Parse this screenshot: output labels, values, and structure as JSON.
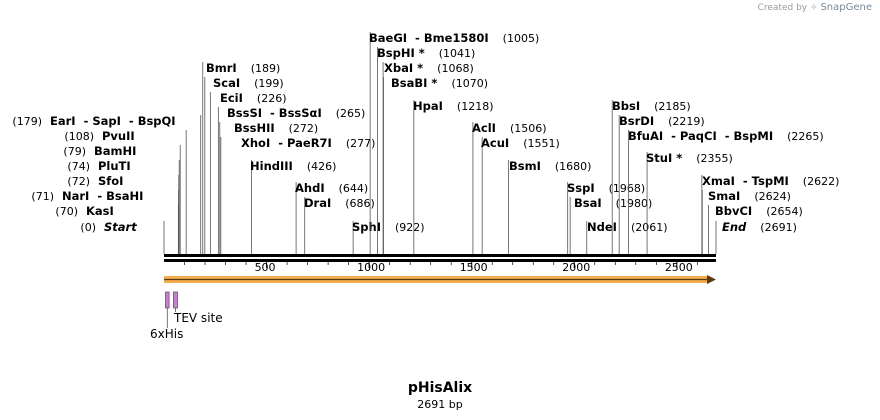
{
  "credit": {
    "prefix": "Created by",
    "brand": "SnapGene"
  },
  "plasmid": {
    "name": "pHisAlix",
    "size_label": "2691 bp",
    "length": 2691
  },
  "ruler_ticks": [
    {
      "pos": 500,
      "label": "500"
    },
    {
      "pos": 1000,
      "label": "1000"
    },
    {
      "pos": 1500,
      "label": "1500"
    },
    {
      "pos": 2000,
      "label": "2000"
    },
    {
      "pos": 2500,
      "label": "2500"
    }
  ],
  "features": [
    {
      "name": "6xHis",
      "start": 7,
      "end": 25,
      "color": "#c77fcf"
    },
    {
      "name": "TEV site",
      "start": 46,
      "end": 66,
      "color": "#c77fcf"
    }
  ],
  "orf": {
    "start": 1,
    "end": 2691,
    "color": "#f3a43b"
  },
  "sites": [
    {
      "id": "start",
      "name": "Start",
      "pos": 0,
      "pos_label": "(0)",
      "italic": true,
      "side": "left"
    },
    {
      "id": "kasi",
      "name": "KasI",
      "pos": 70,
      "pos_label": "(70)",
      "side": "left"
    },
    {
      "id": "nari",
      "name": "NarI  - BsaHI",
      "pos": 71,
      "pos_label": "(71)",
      "side": "left"
    },
    {
      "id": "sfoi",
      "name": "SfoI",
      "pos": 72,
      "pos_label": "(72)",
      "side": "left"
    },
    {
      "id": "pluti",
      "name": "PluTI",
      "pos": 74,
      "pos_label": "(74)",
      "side": "left"
    },
    {
      "id": "bamhi",
      "name": "BamHI",
      "pos": 79,
      "pos_label": "(79)",
      "side": "left"
    },
    {
      "id": "pvuii",
      "name": "PvuII",
      "pos": 108,
      "pos_label": "(108)",
      "side": "left"
    },
    {
      "id": "eari",
      "name": "EarI  - SapI  - BspQI",
      "pos": 179,
      "pos_label": "(179)",
      "side": "left"
    },
    {
      "id": "bmri",
      "name": "BmrI",
      "pos": 189,
      "pos_label": "(189)",
      "side": "right"
    },
    {
      "id": "scai",
      "name": "ScaI",
      "pos": 199,
      "pos_label": "(199)",
      "side": "right"
    },
    {
      "id": "ecii",
      "name": "EciI",
      "pos": 226,
      "pos_label": "(226)",
      "side": "right"
    },
    {
      "id": "bsssi",
      "name": "BssSI  - BssSαI",
      "pos": 265,
      "pos_label": "(265)",
      "side": "right"
    },
    {
      "id": "bsshii",
      "name": "BssHII",
      "pos": 272,
      "pos_label": "(272)",
      "side": "right"
    },
    {
      "id": "xhoi",
      "name": "XhoI  - PaeR7I",
      "pos": 277,
      "pos_label": "(277)",
      "side": "right"
    },
    {
      "id": "hindiii",
      "name": "HindIII",
      "pos": 426,
      "pos_label": "(426)",
      "side": "right"
    },
    {
      "id": "ahdi",
      "name": "AhdI",
      "pos": 644,
      "pos_label": "(644)",
      "side": "right"
    },
    {
      "id": "drai",
      "name": "DraI",
      "pos": 686,
      "pos_label": "(686)",
      "side": "right"
    },
    {
      "id": "sphi",
      "name": "SphI",
      "pos": 922,
      "pos_label": "(922)",
      "side": "right"
    },
    {
      "id": "baegi",
      "name": "BaeGI  - Bme1580I",
      "pos": 1005,
      "pos_label": "(1005)",
      "side": "right"
    },
    {
      "id": "bsphi",
      "name": "BspHI *",
      "pos": 1041,
      "pos_label": "(1041)",
      "side": "right"
    },
    {
      "id": "xbai",
      "name": "XbaI *",
      "pos": 1068,
      "pos_label": "(1068)",
      "side": "right"
    },
    {
      "id": "bsabi",
      "name": "BsaBI *",
      "pos": 1070,
      "pos_label": "(1070)",
      "side": "right"
    },
    {
      "id": "hpai",
      "name": "HpaI",
      "pos": 1218,
      "pos_label": "(1218)",
      "side": "right"
    },
    {
      "id": "acli",
      "name": "AclI",
      "pos": 1506,
      "pos_label": "(1506)",
      "side": "right"
    },
    {
      "id": "acui",
      "name": "AcuI",
      "pos": 1551,
      "pos_label": "(1551)",
      "side": "right"
    },
    {
      "id": "bsmi",
      "name": "BsmI",
      "pos": 1680,
      "pos_label": "(1680)",
      "side": "right"
    },
    {
      "id": "sspi",
      "name": "SspI",
      "pos": 1968,
      "pos_label": "(1968)",
      "side": "right"
    },
    {
      "id": "bsai",
      "name": "BsaI",
      "pos": 1980,
      "pos_label": "(1980)",
      "side": "right"
    },
    {
      "id": "ndei",
      "name": "NdeI",
      "pos": 2061,
      "pos_label": "(2061)",
      "side": "right"
    },
    {
      "id": "bbsi",
      "name": "BbsI",
      "pos": 2185,
      "pos_label": "(2185)",
      "side": "right"
    },
    {
      "id": "bsrdi",
      "name": "BsrDI",
      "pos": 2219,
      "pos_label": "(2219)",
      "side": "right"
    },
    {
      "id": "bfuai",
      "name": "BfuAI  - PaqCI  - BspMI",
      "pos": 2265,
      "pos_label": "(2265)",
      "side": "right"
    },
    {
      "id": "stui",
      "name": "StuI *",
      "pos": 2355,
      "pos_label": "(2355)",
      "side": "right"
    },
    {
      "id": "xmai",
      "name": "XmaI  - TspMI",
      "pos": 2622,
      "pos_label": "(2622)",
      "side": "right"
    },
    {
      "id": "smai",
      "name": "SmaI",
      "pos": 2624,
      "pos_label": "(2624)",
      "side": "right"
    },
    {
      "id": "bbvci",
      "name": "BbvCI",
      "pos": 2654,
      "pos_label": "(2654)",
      "side": "right"
    },
    {
      "id": "end",
      "name": "End",
      "pos": 2691,
      "pos_label": "(2691)",
      "italic": true,
      "side": "right"
    }
  ]
}
